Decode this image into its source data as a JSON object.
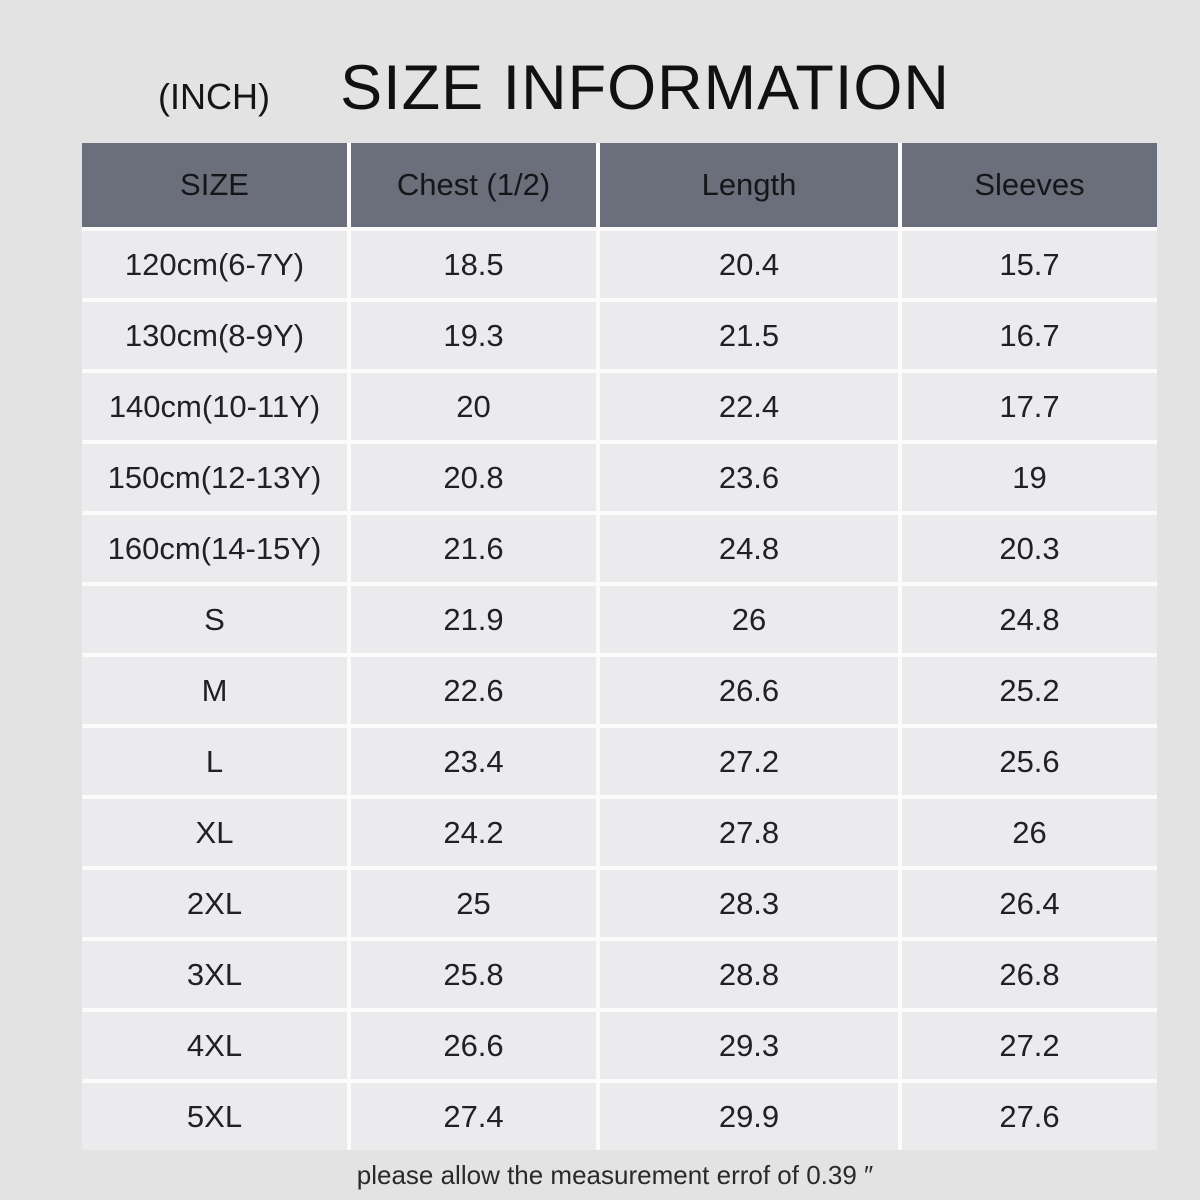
{
  "title_block": {
    "unit_label": "(INCH)",
    "title": "SIZE INFORMATION"
  },
  "footnote": "please allow the measurement errof of 0.39 ″",
  "colors": {
    "page_bg": "#e3e3e4",
    "cell_bg": "#ebebed",
    "header_bg": "#6b6e7b",
    "grid_gap": "#fbfbfc",
    "text": "#212125"
  },
  "chart_data": {
    "type": "table",
    "title": "SIZE INFORMATION",
    "unit": "(INCH)",
    "columns": [
      "SIZE",
      "Chest (1/2)",
      "Length",
      "Sleeves"
    ],
    "rows": [
      [
        "120cm(6-7Y)",
        18.5,
        20.4,
        15.7
      ],
      [
        "130cm(8-9Y)",
        19.3,
        21.5,
        16.7
      ],
      [
        "140cm(10-11Y)",
        20,
        22.4,
        17.7
      ],
      [
        "150cm(12-13Y)",
        20.8,
        23.6,
        19
      ],
      [
        "160cm(14-15Y)",
        21.6,
        24.8,
        20.3
      ],
      [
        "S",
        21.9,
        26,
        24.8
      ],
      [
        "M",
        22.6,
        26.6,
        25.2
      ],
      [
        "L",
        23.4,
        27.2,
        25.6
      ],
      [
        "XL",
        24.2,
        27.8,
        26
      ],
      [
        "2XL",
        25,
        28.3,
        26.4
      ],
      [
        "3XL",
        25.8,
        28.8,
        26.8
      ],
      [
        "4XL",
        26.6,
        29.3,
        27.2
      ],
      [
        "5XL",
        27.4,
        29.9,
        27.6
      ]
    ],
    "note": "please allow the measurement errof of 0.39 ″"
  }
}
